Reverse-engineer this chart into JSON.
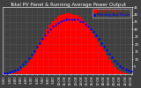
{
  "title": "Total PV Panel & Running Average Power Output",
  "title_fontsize": 4.0,
  "bg_color": "#404040",
  "plot_bg_color": "#404040",
  "bar_color": "#ff0000",
  "bar_edge_color": "#ff0000",
  "avg_line_color": "#0000ff",
  "grid_color": "#888888",
  "text_color": "#ffffff",
  "tick_fontsize": 2.8,
  "n_bars": 48,
  "bar_values": [
    0.05,
    0.1,
    0.2,
    0.4,
    0.8,
    1.5,
    2.5,
    3.8,
    5.5,
    7.5,
    10.0,
    13.0,
    16.0,
    19.5,
    23.0,
    26.5,
    30.0,
    33.0,
    35.5,
    37.5,
    39.0,
    40.0,
    40.5,
    40.8,
    40.8,
    40.5,
    40.0,
    39.5,
    38.5,
    37.0,
    35.0,
    33.0,
    30.5,
    27.5,
    24.5,
    21.5,
    18.5,
    15.5,
    12.5,
    9.5,
    7.0,
    4.8,
    3.0,
    1.8,
    0.9,
    0.4,
    0.15,
    0.05
  ],
  "avg_values": [
    0.5,
    0.7,
    1.0,
    1.5,
    2.2,
    3.2,
    4.5,
    6.2,
    8.2,
    10.5,
    13.0,
    15.5,
    18.2,
    21.0,
    23.5,
    26.0,
    28.2,
    30.0,
    31.8,
    33.2,
    34.5,
    35.5,
    36.2,
    36.8,
    37.0,
    37.0,
    36.8,
    36.5,
    35.8,
    34.8,
    33.5,
    32.0,
    30.2,
    28.2,
    26.0,
    23.5,
    21.0,
    18.5,
    16.0,
    13.5,
    11.0,
    8.8,
    7.0,
    5.5,
    4.2,
    3.2,
    2.5,
    2.0
  ],
  "ylim": [
    0,
    45
  ],
  "yticks": [
    5,
    10,
    15,
    20,
    25,
    30,
    35,
    40,
    45
  ],
  "xlabels": [
    "0:00",
    "1:00",
    "2:00",
    "3:00",
    "4:00",
    "5:00",
    "6:00",
    "7:00",
    "8:00",
    "9:00",
    "10:00",
    "11:00",
    "12:00",
    "13:00",
    "14:00",
    "15:00",
    "16:00",
    "17:00",
    "18:00",
    "19:00",
    "20:00",
    "21:00",
    "22:00",
    "23:00"
  ],
  "legend_entries": [
    "Total PV Power",
    "Running Avg Power"
  ],
  "legend_colors": [
    "#ff0000",
    "#0000ff"
  ],
  "legend_fontsize": 2.8
}
